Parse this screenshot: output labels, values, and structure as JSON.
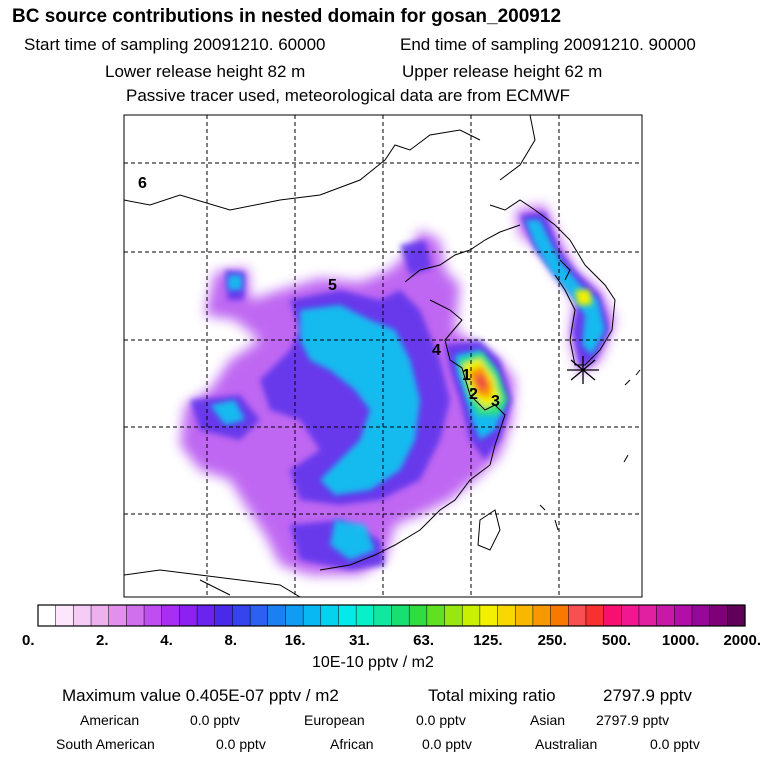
{
  "header": {
    "title": "BC  source contributions in nested domain for gosan_200912",
    "start_time": "Start time of sampling 20091210. 60000",
    "end_time": "End time of sampling 20091210. 90000",
    "lower_release": "Lower release height   82 m",
    "upper_release": "Upper release height   62 m",
    "tracer_note": "Passive tracer used, meteorological data are from ECMWF"
  },
  "chart_data": {
    "type": "heatmap",
    "title": "BC  source contributions in nested domain for gosan_200912",
    "region_labels": [
      "1",
      "2",
      "3",
      "4",
      "5",
      "6"
    ],
    "receptor": "gosan",
    "colorbar": {
      "tick_labels": [
        "0.",
        "2.",
        "4.",
        "8.",
        "16.",
        "31.",
        "63.",
        "125.",
        "250.",
        "500.",
        "1000.",
        "2000."
      ],
      "unit": "10E-10 pptv / m2",
      "colors": [
        "#ffffff",
        "#fbe6fb",
        "#f5ccf5",
        "#eeb0ee",
        "#e290ec",
        "#d070ec",
        "#bf4ef0",
        "#a82ef2",
        "#8c22f2",
        "#6a24ee",
        "#4a2aea",
        "#3644ee",
        "#2c60f0",
        "#1c80f2",
        "#109cf2",
        "#08b8f2",
        "#04d2ee",
        "#04eaea",
        "#08f0c8",
        "#10e8a0",
        "#18e070",
        "#30dc40",
        "#60e020",
        "#98e810",
        "#c8f000",
        "#f0f000",
        "#f8d800",
        "#f8b800",
        "#f89800",
        "#f87800",
        "#f85050",
        "#f83030",
        "#f81070",
        "#f01890",
        "#e020a0",
        "#c818a8",
        "#b010a8",
        "#980898",
        "#800078",
        "#600058"
      ]
    },
    "grid": true
  },
  "summary": {
    "max_value": "Maximum value  0.405E-07 pptv / m2",
    "total_label": "Total mixing ratio",
    "total_value": "2797.9 pptv",
    "contributions": [
      {
        "label": "American",
        "value": "0.0 pptv"
      },
      {
        "label": "European",
        "value": "0.0 pptv"
      },
      {
        "label": "Asian",
        "value": "2797.9 pptv"
      },
      {
        "label": "South American",
        "value": "0.0 pptv"
      },
      {
        "label": "African",
        "value": "0.0 pptv"
      },
      {
        "label": "Australian",
        "value": "0.0 pptv"
      }
    ]
  }
}
